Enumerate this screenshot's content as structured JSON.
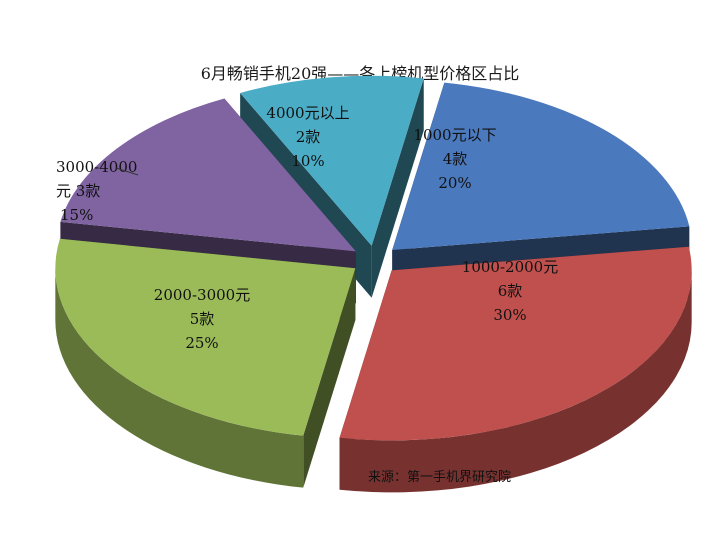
{
  "chart_data": {
    "type": "pie",
    "title": "6月畅销手机20强——各上榜机型价格区占比",
    "source": "来源：第一手机界研究院",
    "exploded": true,
    "three_d": true,
    "slices": [
      {
        "id": "below1000",
        "line1": "1000元以下",
        "line2": "4款",
        "line3": "20%",
        "models": 4,
        "percent": 20,
        "color": "#4b79bd"
      },
      {
        "id": "1000to2000",
        "line1": "1000-2000元",
        "line2": "6款",
        "line3": "30%",
        "models": 6,
        "percent": 30,
        "color": "#c0504d"
      },
      {
        "id": "2000to3000",
        "line1": "2000-3000元",
        "line2": "5款",
        "line3": "25%",
        "models": 5,
        "percent": 25,
        "color": "#9bbb59"
      },
      {
        "id": "3000to4000",
        "line1": "3000-4000",
        "line2": "元  3款",
        "line3": "15%",
        "models": 3,
        "percent": 15,
        "color": "#8064a2"
      },
      {
        "id": "above4000",
        "line1": "4000元以上",
        "line2": "2款",
        "line3": "10%",
        "models": 2,
        "percent": 10,
        "color": "#4bacc6"
      }
    ]
  }
}
